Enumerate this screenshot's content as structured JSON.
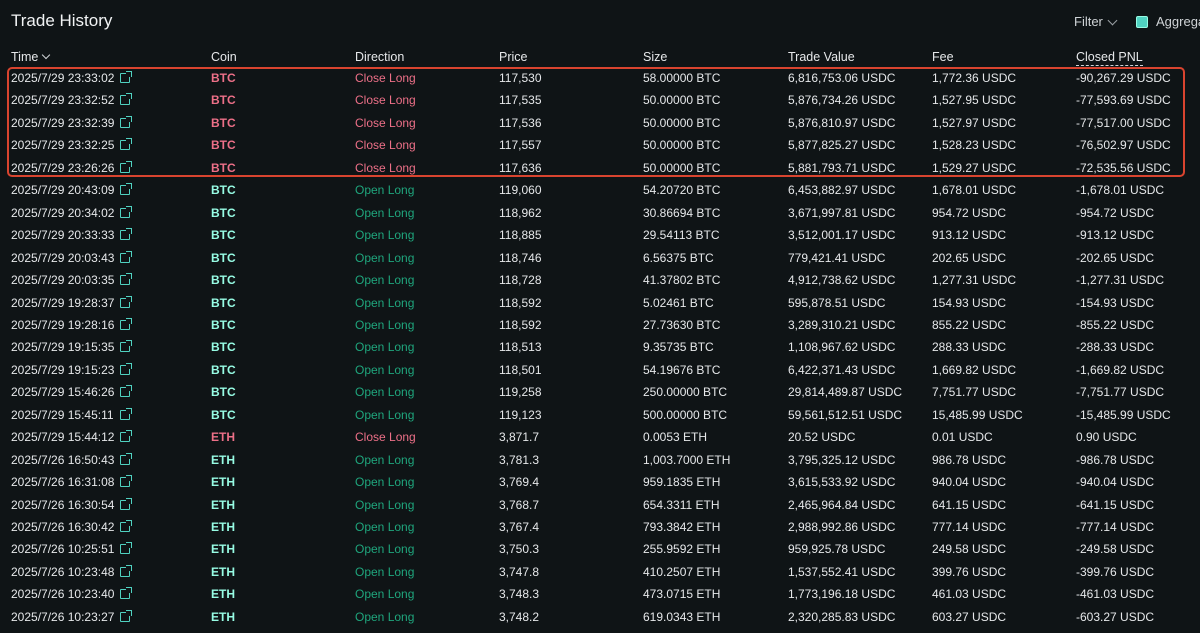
{
  "header": {
    "title": "Trade History",
    "filter_label": "Filter",
    "aggregate_label": "Aggrega"
  },
  "colors": {
    "coin_short": "#ed7088",
    "coin_long": "#97fce4",
    "dir_close": "#ed7088",
    "dir_open": "#1fa67d",
    "highlight": "#d9442f"
  },
  "columns": {
    "time": "Time",
    "coin": "Coin",
    "direction": "Direction",
    "price": "Price",
    "size": "Size",
    "trade_value": "Trade Value",
    "fee": "Fee",
    "closed_pnl": "Closed PNL"
  },
  "rows": [
    {
      "time": "2025/7/29 23:33:02",
      "coin": "BTC",
      "direction": "Close Long",
      "price": "117,530",
      "size": "58.00000 BTC",
      "value": "6,816,753.06 USDC",
      "fee": "1,772.36 USDC",
      "pnl": "-90,267.29 USDC"
    },
    {
      "time": "2025/7/29 23:32:52",
      "coin": "BTC",
      "direction": "Close Long",
      "price": "117,535",
      "size": "50.00000 BTC",
      "value": "5,876,734.26 USDC",
      "fee": "1,527.95 USDC",
      "pnl": "-77,593.69 USDC"
    },
    {
      "time": "2025/7/29 23:32:39",
      "coin": "BTC",
      "direction": "Close Long",
      "price": "117,536",
      "size": "50.00000 BTC",
      "value": "5,876,810.97 USDC",
      "fee": "1,527.97 USDC",
      "pnl": "-77,517.00 USDC"
    },
    {
      "time": "2025/7/29 23:32:25",
      "coin": "BTC",
      "direction": "Close Long",
      "price": "117,557",
      "size": "50.00000 BTC",
      "value": "5,877,825.27 USDC",
      "fee": "1,528.23 USDC",
      "pnl": "-76,502.97 USDC"
    },
    {
      "time": "2025/7/29 23:26:26",
      "coin": "BTC",
      "direction": "Close Long",
      "price": "117,636",
      "size": "50.00000 BTC",
      "value": "5,881,793.71 USDC",
      "fee": "1,529.27 USDC",
      "pnl": "-72,535.56 USDC"
    },
    {
      "time": "2025/7/29 20:43:09",
      "coin": "BTC",
      "direction": "Open Long",
      "price": "119,060",
      "size": "54.20720 BTC",
      "value": "6,453,882.97 USDC",
      "fee": "1,678.01 USDC",
      "pnl": "-1,678.01 USDC"
    },
    {
      "time": "2025/7/29 20:34:02",
      "coin": "BTC",
      "direction": "Open Long",
      "price": "118,962",
      "size": "30.86694 BTC",
      "value": "3,671,997.81 USDC",
      "fee": "954.72 USDC",
      "pnl": "-954.72 USDC"
    },
    {
      "time": "2025/7/29 20:33:33",
      "coin": "BTC",
      "direction": "Open Long",
      "price": "118,885",
      "size": "29.54113 BTC",
      "value": "3,512,001.17 USDC",
      "fee": "913.12 USDC",
      "pnl": "-913.12 USDC"
    },
    {
      "time": "2025/7/29 20:03:43",
      "coin": "BTC",
      "direction": "Open Long",
      "price": "118,746",
      "size": "6.56375 BTC",
      "value": "779,421.41 USDC",
      "fee": "202.65 USDC",
      "pnl": "-202.65 USDC"
    },
    {
      "time": "2025/7/29 20:03:35",
      "coin": "BTC",
      "direction": "Open Long",
      "price": "118,728",
      "size": "41.37802 BTC",
      "value": "4,912,738.62 USDC",
      "fee": "1,277.31 USDC",
      "pnl": "-1,277.31 USDC"
    },
    {
      "time": "2025/7/29 19:28:37",
      "coin": "BTC",
      "direction": "Open Long",
      "price": "118,592",
      "size": "5.02461 BTC",
      "value": "595,878.51 USDC",
      "fee": "154.93 USDC",
      "pnl": "-154.93 USDC"
    },
    {
      "time": "2025/7/29 19:28:16",
      "coin": "BTC",
      "direction": "Open Long",
      "price": "118,592",
      "size": "27.73630 BTC",
      "value": "3,289,310.21 USDC",
      "fee": "855.22 USDC",
      "pnl": "-855.22 USDC"
    },
    {
      "time": "2025/7/29 19:15:35",
      "coin": "BTC",
      "direction": "Open Long",
      "price": "118,513",
      "size": "9.35735 BTC",
      "value": "1,108,967.62 USDC",
      "fee": "288.33 USDC",
      "pnl": "-288.33 USDC"
    },
    {
      "time": "2025/7/29 19:15:23",
      "coin": "BTC",
      "direction": "Open Long",
      "price": "118,501",
      "size": "54.19676 BTC",
      "value": "6,422,371.43 USDC",
      "fee": "1,669.82 USDC",
      "pnl": "-1,669.82 USDC"
    },
    {
      "time": "2025/7/29 15:46:26",
      "coin": "BTC",
      "direction": "Open Long",
      "price": "119,258",
      "size": "250.00000 BTC",
      "value": "29,814,489.87 USDC",
      "fee": "7,751.77 USDC",
      "pnl": "-7,751.77 USDC"
    },
    {
      "time": "2025/7/29 15:45:11",
      "coin": "BTC",
      "direction": "Open Long",
      "price": "119,123",
      "size": "500.00000 BTC",
      "value": "59,561,512.51 USDC",
      "fee": "15,485.99 USDC",
      "pnl": "-15,485.99 USDC"
    },
    {
      "time": "2025/7/29 15:44:12",
      "coin": "ETH",
      "direction": "Close Long",
      "price": "3,871.7",
      "size": "0.0053 ETH",
      "value": "20.52 USDC",
      "fee": "0.01 USDC",
      "pnl": "0.90 USDC"
    },
    {
      "time": "2025/7/26 16:50:43",
      "coin": "ETH",
      "direction": "Open Long",
      "price": "3,781.3",
      "size": "1,003.7000 ETH",
      "value": "3,795,325.12 USDC",
      "fee": "986.78 USDC",
      "pnl": "-986.78 USDC"
    },
    {
      "time": "2025/7/26 16:31:08",
      "coin": "ETH",
      "direction": "Open Long",
      "price": "3,769.4",
      "size": "959.1835 ETH",
      "value": "3,615,533.92 USDC",
      "fee": "940.04 USDC",
      "pnl": "-940.04 USDC"
    },
    {
      "time": "2025/7/26 16:30:54",
      "coin": "ETH",
      "direction": "Open Long",
      "price": "3,768.7",
      "size": "654.3311 ETH",
      "value": "2,465,964.84 USDC",
      "fee": "641.15 USDC",
      "pnl": "-641.15 USDC"
    },
    {
      "time": "2025/7/26 16:30:42",
      "coin": "ETH",
      "direction": "Open Long",
      "price": "3,767.4",
      "size": "793.3842 ETH",
      "value": "2,988,992.86 USDC",
      "fee": "777.14 USDC",
      "pnl": "-777.14 USDC"
    },
    {
      "time": "2025/7/26 10:25:51",
      "coin": "ETH",
      "direction": "Open Long",
      "price": "3,750.3",
      "size": "255.9592 ETH",
      "value": "959,925.78 USDC",
      "fee": "249.58 USDC",
      "pnl": "-249.58 USDC"
    },
    {
      "time": "2025/7/26 10:23:48",
      "coin": "ETH",
      "direction": "Open Long",
      "price": "3,747.8",
      "size": "410.2507 ETH",
      "value": "1,537,552.41 USDC",
      "fee": "399.76 USDC",
      "pnl": "-399.76 USDC"
    },
    {
      "time": "2025/7/26 10:23:40",
      "coin": "ETH",
      "direction": "Open Long",
      "price": "3,748.3",
      "size": "473.0715 ETH",
      "value": "1,773,196.18 USDC",
      "fee": "461.03 USDC",
      "pnl": "-461.03 USDC"
    },
    {
      "time": "2025/7/26 10:23:27",
      "coin": "ETH",
      "direction": "Open Long",
      "price": "3,748.2",
      "size": "619.0343 ETH",
      "value": "2,320,285.83 USDC",
      "fee": "603.27 USDC",
      "pnl": "-603.27 USDC"
    }
  ]
}
